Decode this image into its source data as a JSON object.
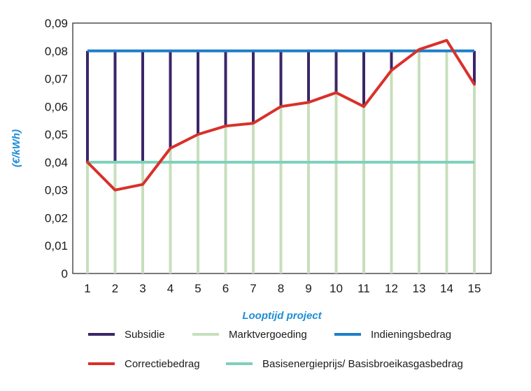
{
  "chart_data": {
    "type": "line",
    "xlabel": "Looptijd project",
    "ylabel": "(€/kWh)",
    "ylim": [
      0,
      0.09
    ],
    "yticks": [
      "0",
      "0,01",
      "0,02",
      "0,03",
      "0,04",
      "0,05",
      "0,06",
      "0,07",
      "0,08",
      "0,09"
    ],
    "categories": [
      "1",
      "2",
      "3",
      "4",
      "5",
      "6",
      "7",
      "8",
      "9",
      "10",
      "11",
      "12",
      "13",
      "14",
      "15"
    ],
    "grid": false,
    "legend_position": "bottom",
    "series": [
      {
        "name": "Subsidie",
        "kind": "vertical-bars-upper",
        "color": "#3b2668",
        "description_values": "from market value up to 0.08"
      },
      {
        "name": "Marktvergoeding",
        "kind": "vertical-bars-lower",
        "color": "#c7dfbc",
        "values": [
          0.04,
          0.04,
          0.04,
          0.045,
          0.05,
          0.053,
          0.054,
          0.06,
          0.0615,
          0.065,
          0.06,
          0.073,
          0.08,
          0.08,
          0.068
        ]
      },
      {
        "name": "Indieningsbedrag",
        "kind": "horizontal-line",
        "color": "#1f7ec8",
        "value": 0.08
      },
      {
        "name": "Correctiebedrag",
        "kind": "line",
        "color": "#d8312a",
        "values": [
          0.04,
          0.03,
          0.032,
          0.045,
          0.05,
          0.053,
          0.054,
          0.06,
          0.0615,
          0.065,
          0.06,
          0.073,
          0.0805,
          0.0838,
          0.068
        ]
      },
      {
        "name": "Basisenergieprijs/ Basisbroeikasgasbedrag",
        "kind": "horizontal-line",
        "color": "#7fd0bb",
        "value": 0.04
      }
    ]
  }
}
